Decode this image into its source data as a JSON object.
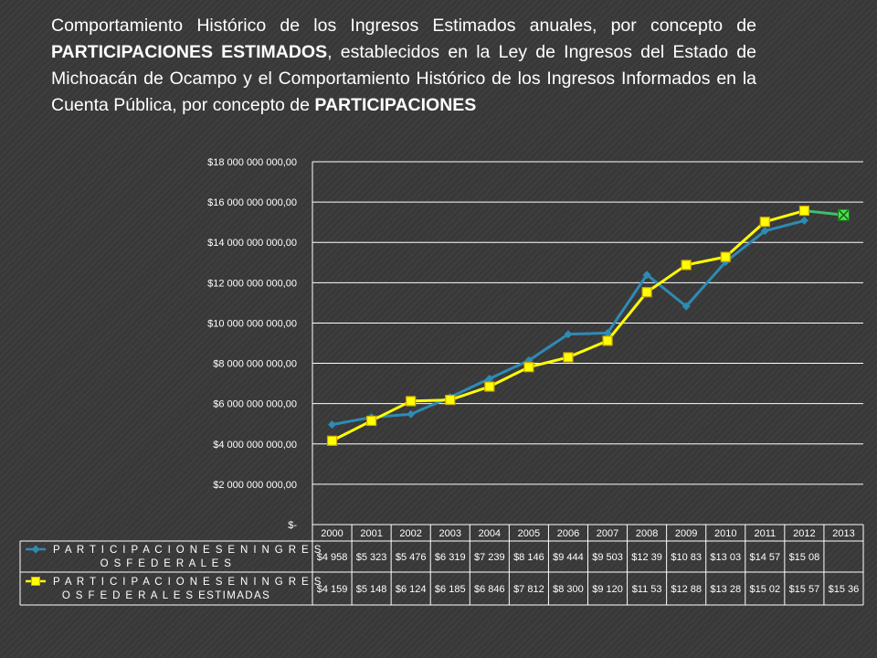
{
  "title": {
    "part1": "Comportamiento Histórico de los Ingresos Estimados anuales, por concepto de ",
    "bold1": "PARTICIPACIONES ESTIMADOS",
    "part2": ", establecidos en la Ley de Ingresos del Estado de Michoacán de Ocampo y el Comportamiento Histórico de los Ingresos Informados en la Cuenta Pública, por concepto de ",
    "bold2": "PARTICIPACIONES"
  },
  "colors": {
    "series_federales": "#2e8bb4",
    "series_estimadas_line": "#ffff00",
    "series_estimadas_marker": "#d4a800",
    "trend_2013": "#3dbf6c",
    "marker_2013": "#4ce04c",
    "grid": "#ffffff"
  },
  "chart_data": {
    "type": "line",
    "categories": [
      "2000",
      "2001",
      "2002",
      "2003",
      "2004",
      "2005",
      "2006",
      "2007",
      "2008",
      "2009",
      "2010",
      "2011",
      "2012",
      "2013"
    ],
    "ylim": [
      0,
      18000000000
    ],
    "yticks": [
      "$-",
      "$2 000 000 000,00",
      "$4 000 000 000,00",
      "$6 000 000 000,00",
      "$8 000 000 000,00",
      "$10 000 000 000,00",
      "$12 000 000 000,00",
      "$14 000 000 000,00",
      "$16 000 000 000,00",
      "$18 000 000 000,00"
    ],
    "grid": true,
    "legend": "data-table-bottom",
    "series": [
      {
        "name": "P A R T I C I P A C I O N E S  E N  I N G R E S O S  F E D E R A L E S",
        "name_line1": "P A R T I C I P A C I O N E S  E N  I N G R E S",
        "name_line2": "O S  F E D E R A L E S",
        "values": [
          4958000000,
          5323000000,
          5476000000,
          6319000000,
          7239000000,
          8146000000,
          9444000000,
          9503000000,
          12390000000,
          10830000000,
          13030000000,
          14570000000,
          15080000000,
          null
        ],
        "labels": [
          "$4 958",
          "$5 323",
          "$5 476",
          "$6 319",
          "$7 239",
          "$8 146",
          "$9 444",
          "$9 503",
          "$12 39",
          "$10 83",
          "$13 03",
          "$14 57",
          "$15 08",
          ""
        ]
      },
      {
        "name": "P A R T I C I P A C I O N E S  E N  I N G R E S O S  F E D E R A L E S ESTIMADAS",
        "name_line1": "P A R T I C I P A C I O N E S  E N  I N G R E S",
        "name_line2": "O S  F E D E R A L E S ESTIMADAS",
        "values": [
          4159000000,
          5148000000,
          6124000000,
          6185000000,
          6846000000,
          7812000000,
          8300000000,
          9120000000,
          11530000000,
          12880000000,
          13280000000,
          15020000000,
          15570000000,
          15360000000
        ],
        "labels": [
          "$4 159",
          "$5 148",
          "$6 124",
          "$6 185",
          "$6 846",
          "$7 812",
          "$8 300",
          "$9 120",
          "$11 53",
          "$12 88",
          "$13 28",
          "$15 02",
          "$15 57",
          "$15 36"
        ]
      }
    ]
  }
}
